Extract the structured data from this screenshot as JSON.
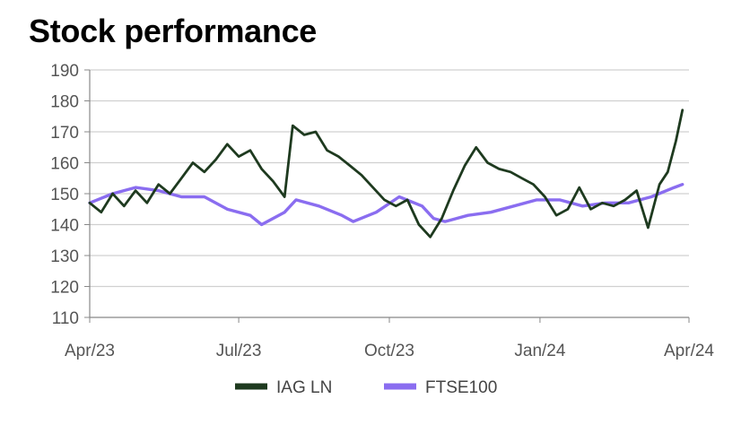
{
  "chart_data": {
    "type": "line",
    "title": "Stock performance",
    "xlabel": "",
    "ylabel": "",
    "ylim": [
      110,
      190
    ],
    "yticks": [
      110,
      120,
      130,
      140,
      150,
      160,
      170,
      180,
      190
    ],
    "xlim": [
      "2023-04-01",
      "2024-04-01"
    ],
    "xticks": [
      {
        "date": "2023-04-01",
        "label": "Apr/23"
      },
      {
        "date": "2023-07-01",
        "label": "Jul/23"
      },
      {
        "date": "2023-10-01",
        "label": "Oct/23"
      },
      {
        "date": "2024-01-01",
        "label": "Jan/24"
      },
      {
        "date": "2024-04-01",
        "label": "Apr/24"
      }
    ],
    "grid": true,
    "legend_position": "bottom",
    "series": [
      {
        "name": "IAG LN",
        "color": "#1e3a1f",
        "points": [
          [
            "2023-04-01",
            147
          ],
          [
            "2023-04-08",
            144
          ],
          [
            "2023-04-15",
            150
          ],
          [
            "2023-04-22",
            146
          ],
          [
            "2023-04-29",
            151
          ],
          [
            "2023-05-06",
            147
          ],
          [
            "2023-05-13",
            153
          ],
          [
            "2023-05-20",
            150
          ],
          [
            "2023-05-27",
            155
          ],
          [
            "2023-06-03",
            160
          ],
          [
            "2023-06-10",
            157
          ],
          [
            "2023-06-17",
            161
          ],
          [
            "2023-06-24",
            166
          ],
          [
            "2023-07-01",
            162
          ],
          [
            "2023-07-08",
            164
          ],
          [
            "2023-07-15",
            158
          ],
          [
            "2023-07-22",
            154
          ],
          [
            "2023-07-29",
            149
          ],
          [
            "2023-08-03",
            172
          ],
          [
            "2023-08-10",
            169
          ],
          [
            "2023-08-17",
            170
          ],
          [
            "2023-08-24",
            164
          ],
          [
            "2023-08-31",
            162
          ],
          [
            "2023-09-07",
            159
          ],
          [
            "2023-09-14",
            156
          ],
          [
            "2023-09-21",
            152
          ],
          [
            "2023-09-28",
            148
          ],
          [
            "2023-10-05",
            146
          ],
          [
            "2023-10-12",
            148
          ],
          [
            "2023-10-19",
            140
          ],
          [
            "2023-10-26",
            136
          ],
          [
            "2023-11-02",
            142
          ],
          [
            "2023-11-09",
            151
          ],
          [
            "2023-11-16",
            159
          ],
          [
            "2023-11-23",
            165
          ],
          [
            "2023-11-30",
            160
          ],
          [
            "2023-12-07",
            158
          ],
          [
            "2023-12-14",
            157
          ],
          [
            "2023-12-21",
            155
          ],
          [
            "2023-12-28",
            153
          ],
          [
            "2024-01-04",
            149
          ],
          [
            "2024-01-11",
            143
          ],
          [
            "2024-01-18",
            145
          ],
          [
            "2024-01-25",
            152
          ],
          [
            "2024-02-01",
            145
          ],
          [
            "2024-02-08",
            147
          ],
          [
            "2024-02-15",
            146
          ],
          [
            "2024-02-22",
            148
          ],
          [
            "2024-02-29",
            151
          ],
          [
            "2024-03-07",
            139
          ],
          [
            "2024-03-14",
            153
          ],
          [
            "2024-03-19",
            157
          ],
          [
            "2024-03-24",
            167
          ],
          [
            "2024-03-28",
            177
          ]
        ]
      },
      {
        "name": "FTSE100",
        "color": "#8a6df0",
        "points": [
          [
            "2023-04-01",
            147
          ],
          [
            "2023-04-15",
            150
          ],
          [
            "2023-04-29",
            152
          ],
          [
            "2023-05-13",
            151
          ],
          [
            "2023-05-27",
            149
          ],
          [
            "2023-06-10",
            149
          ],
          [
            "2023-06-24",
            145
          ],
          [
            "2023-07-08",
            143
          ],
          [
            "2023-07-15",
            140
          ],
          [
            "2023-07-29",
            144
          ],
          [
            "2023-08-05",
            148
          ],
          [
            "2023-08-19",
            146
          ],
          [
            "2023-09-02",
            143
          ],
          [
            "2023-09-09",
            141
          ],
          [
            "2023-09-23",
            144
          ],
          [
            "2023-10-07",
            149
          ],
          [
            "2023-10-21",
            146
          ],
          [
            "2023-10-28",
            142
          ],
          [
            "2023-11-04",
            141
          ],
          [
            "2023-11-18",
            143
          ],
          [
            "2023-12-02",
            144
          ],
          [
            "2023-12-16",
            146
          ],
          [
            "2023-12-30",
            148
          ],
          [
            "2024-01-13",
            148
          ],
          [
            "2024-01-27",
            146
          ],
          [
            "2024-02-10",
            147
          ],
          [
            "2024-02-24",
            147
          ],
          [
            "2024-03-09",
            149
          ],
          [
            "2024-03-23",
            152
          ],
          [
            "2024-03-28",
            153
          ]
        ]
      }
    ]
  }
}
